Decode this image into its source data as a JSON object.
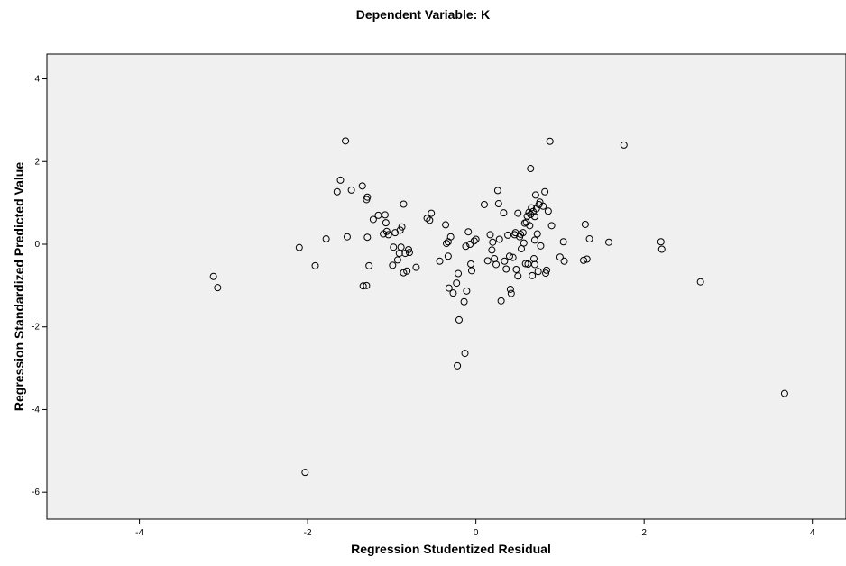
{
  "chart_data": {
    "type": "scatter",
    "title": "Dependent Variable: K",
    "xlabel": "Regression Studentized Residual",
    "ylabel": "Regression Standardized Predicted Value",
    "xlim": [
      -5.1,
      4.4
    ],
    "ylim": [
      -6.65,
      4.6
    ],
    "xticks": [
      -4,
      -2,
      0,
      2,
      4
    ],
    "yticks": [
      -6,
      -4,
      -2,
      0,
      2,
      4
    ],
    "grid": false,
    "colors": {
      "plot_background": "#f0f0f0",
      "marker_stroke": "#000000",
      "marker_fill": "none",
      "axis": "#000000"
    },
    "points": [
      [
        -3.12,
        -0.78
      ],
      [
        -3.07,
        -1.05
      ],
      [
        -2.1,
        -0.08
      ],
      [
        -2.03,
        -5.52
      ],
      [
        -1.91,
        -0.52
      ],
      [
        -1.78,
        0.13
      ],
      [
        -1.65,
        1.27
      ],
      [
        -1.61,
        1.55
      ],
      [
        -1.55,
        2.5
      ],
      [
        -1.53,
        0.18
      ],
      [
        -1.48,
        1.31
      ],
      [
        -1.35,
        1.41
      ],
      [
        -1.34,
        -1.01
      ],
      [
        -1.3,
        1.08
      ],
      [
        -1.29,
        1.14
      ],
      [
        -1.3,
        -1.0
      ],
      [
        -1.29,
        0.17
      ],
      [
        -1.27,
        -0.52
      ],
      [
        -1.22,
        0.6
      ],
      [
        -1.16,
        0.7
      ],
      [
        -1.1,
        0.25
      ],
      [
        -1.08,
        0.71
      ],
      [
        -1.07,
        0.52
      ],
      [
        -1.06,
        0.31
      ],
      [
        -1.04,
        0.23
      ],
      [
        -0.99,
        -0.51
      ],
      [
        -0.98,
        -0.07
      ],
      [
        -0.96,
        0.28
      ],
      [
        -0.93,
        -0.38
      ],
      [
        -0.91,
        -0.22
      ],
      [
        -0.9,
        0.34
      ],
      [
        -0.89,
        -0.07
      ],
      [
        -0.88,
        0.42
      ],
      [
        -0.86,
        0.97
      ],
      [
        -0.86,
        -0.69
      ],
      [
        -0.84,
        -0.22
      ],
      [
        -0.82,
        -0.65
      ],
      [
        -0.8,
        -0.13
      ],
      [
        -0.79,
        -0.2
      ],
      [
        -0.71,
        -0.56
      ],
      [
        -0.58,
        0.63
      ],
      [
        -0.55,
        0.58
      ],
      [
        -0.53,
        0.75
      ],
      [
        -0.43,
        -0.41
      ],
      [
        -0.36,
        0.47
      ],
      [
        -0.35,
        0.02
      ],
      [
        -0.33,
        0.06
      ],
      [
        -0.33,
        -0.29
      ],
      [
        -0.32,
        -1.06
      ],
      [
        -0.3,
        0.18
      ],
      [
        -0.27,
        -1.18
      ],
      [
        -0.23,
        -0.94
      ],
      [
        -0.22,
        -2.94
      ],
      [
        -0.21,
        -0.71
      ],
      [
        -0.2,
        -1.83
      ],
      [
        -0.14,
        -1.39
      ],
      [
        -0.13,
        -2.64
      ],
      [
        -0.12,
        -0.05
      ],
      [
        -0.11,
        -1.13
      ],
      [
        -0.09,
        0.3
      ],
      [
        -0.07,
        0.0
      ],
      [
        -0.06,
        -0.48
      ],
      [
        -0.05,
        -0.64
      ],
      [
        -0.02,
        0.08
      ],
      [
        0.0,
        0.12
      ],
      [
        0.1,
        0.96
      ],
      [
        0.14,
        -0.4
      ],
      [
        0.17,
        0.23
      ],
      [
        0.19,
        -0.14
      ],
      [
        0.2,
        0.05
      ],
      [
        0.22,
        -0.35
      ],
      [
        0.24,
        -0.49
      ],
      [
        0.26,
        1.3
      ],
      [
        0.27,
        0.98
      ],
      [
        0.28,
        0.12
      ],
      [
        0.3,
        -1.37
      ],
      [
        0.33,
        0.76
      ],
      [
        0.34,
        -0.41
      ],
      [
        0.36,
        -0.6
      ],
      [
        0.38,
        0.22
      ],
      [
        0.4,
        -0.29
      ],
      [
        0.41,
        -1.09
      ],
      [
        0.42,
        -1.19
      ],
      [
        0.44,
        -0.32
      ],
      [
        0.46,
        0.23
      ],
      [
        0.47,
        0.28
      ],
      [
        0.48,
        -0.61
      ],
      [
        0.5,
        0.75
      ],
      [
        0.5,
        -0.77
      ],
      [
        0.52,
        0.18
      ],
      [
        0.53,
        0.24
      ],
      [
        0.54,
        -0.11
      ],
      [
        0.56,
        0.28
      ],
      [
        0.57,
        0.03
      ],
      [
        0.58,
        0.51
      ],
      [
        0.59,
        -0.47
      ],
      [
        0.6,
        0.53
      ],
      [
        0.61,
        0.68
      ],
      [
        0.62,
        -0.48
      ],
      [
        0.63,
        0.77
      ],
      [
        0.64,
        0.45
      ],
      [
        0.65,
        0.72
      ],
      [
        0.65,
        1.83
      ],
      [
        0.66,
        0.88
      ],
      [
        0.67,
        -0.76
      ],
      [
        0.68,
        0.79
      ],
      [
        0.69,
        -0.35
      ],
      [
        0.7,
        0.1
      ],
      [
        0.7,
        0.67
      ],
      [
        0.7,
        -0.49
      ],
      [
        0.71,
        1.19
      ],
      [
        0.72,
        0.86
      ],
      [
        0.73,
        0.25
      ],
      [
        0.74,
        -0.66
      ],
      [
        0.75,
        0.96
      ],
      [
        0.76,
        1.02
      ],
      [
        0.77,
        -0.04
      ],
      [
        0.8,
        0.92
      ],
      [
        0.82,
        1.27
      ],
      [
        0.83,
        -0.7
      ],
      [
        0.84,
        -0.63
      ],
      [
        0.86,
        0.8
      ],
      [
        0.88,
        2.49
      ],
      [
        0.9,
        0.45
      ],
      [
        1.0,
        -0.31
      ],
      [
        1.04,
        0.06
      ],
      [
        1.05,
        -0.41
      ],
      [
        1.28,
        -0.39
      ],
      [
        1.3,
        0.48
      ],
      [
        1.32,
        -0.36
      ],
      [
        1.35,
        0.13
      ],
      [
        1.58,
        0.05
      ],
      [
        1.76,
        2.4
      ],
      [
        2.2,
        0.06
      ],
      [
        2.21,
        -0.12
      ],
      [
        2.67,
        -0.91
      ],
      [
        3.67,
        -3.61
      ]
    ]
  }
}
